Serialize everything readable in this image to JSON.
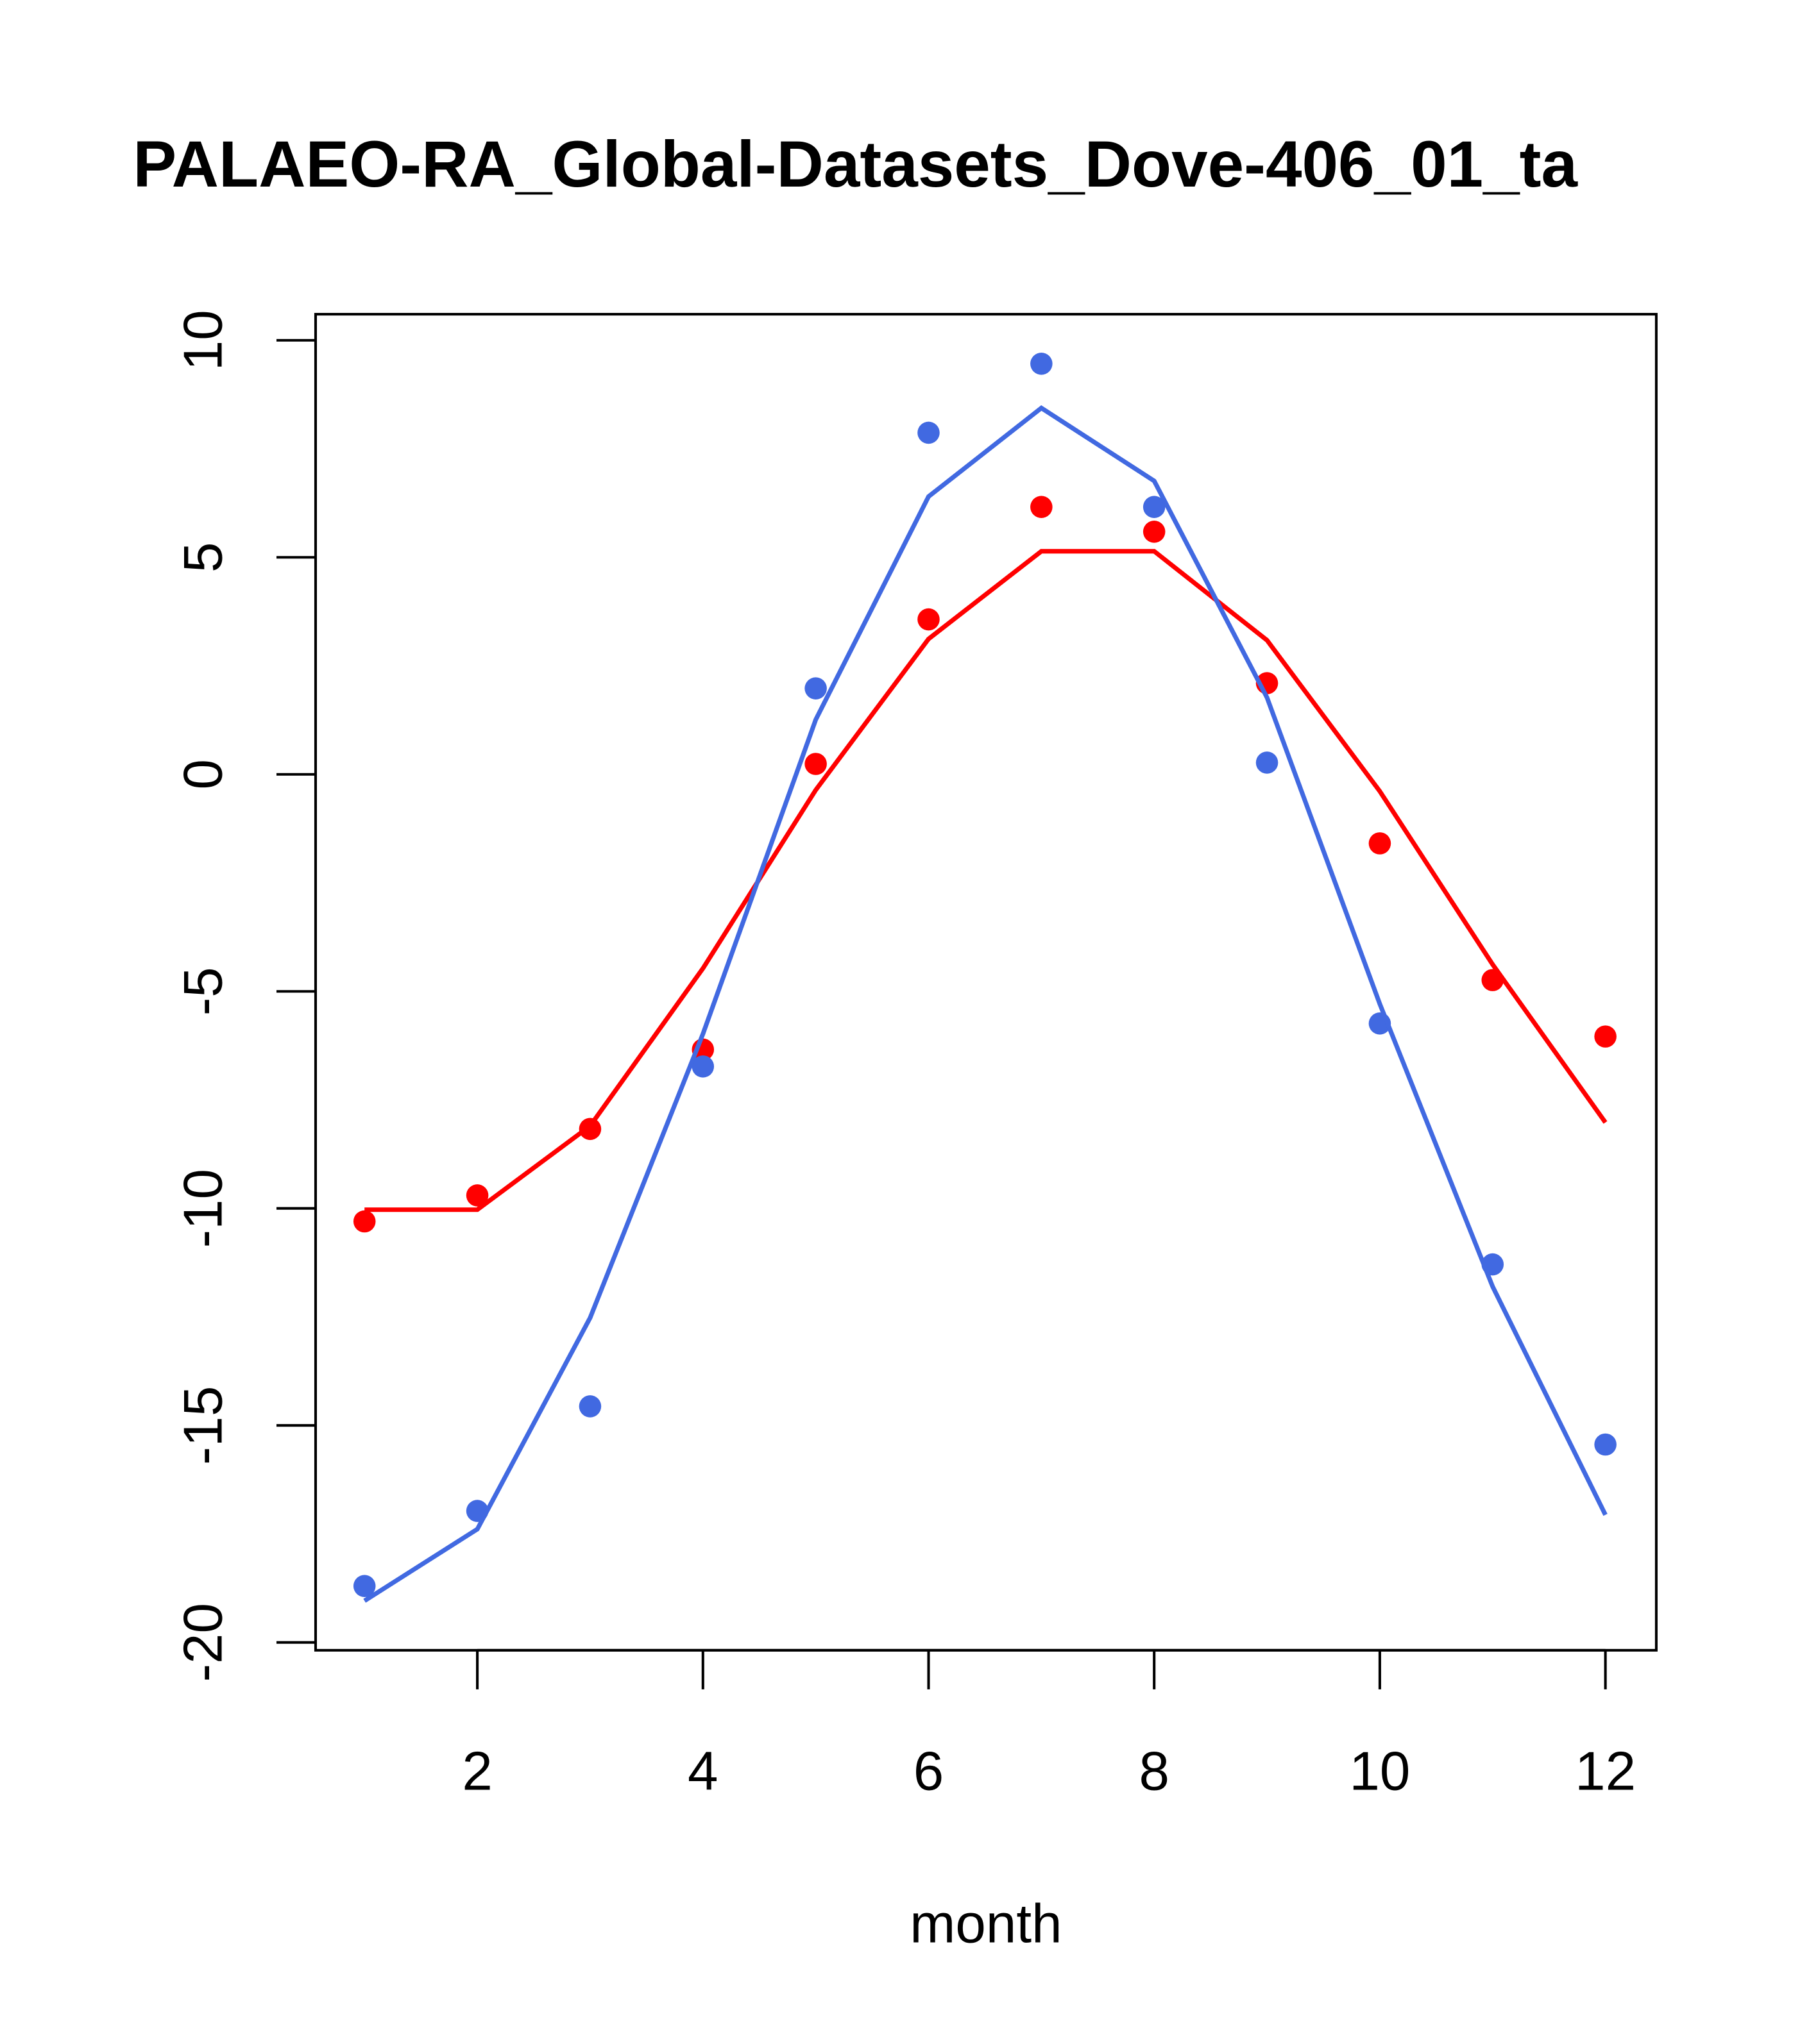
{
  "chart_data": {
    "type": "line",
    "title": "PALAEO-RA_Global-Datasets_Dove-406_01_ta",
    "xlabel": "month",
    "ylabel": "",
    "xlim": [
      0.55,
      12.45
    ],
    "ylim": [
      -20.2,
      10.6
    ],
    "xticks": [
      2,
      4,
      6,
      8,
      10,
      12
    ],
    "yticks": [
      -20,
      -15,
      -10,
      -5,
      0,
      5,
      10
    ],
    "x": [
      1,
      2,
      3,
      4,
      5,
      6,
      7,
      8,
      9,
      10,
      11,
      12
    ],
    "series": [
      {
        "name": "red points",
        "style": "points",
        "color": "#ff0000",
        "values": [
          -10.3,
          -9.7,
          -8.17,
          -6.34,
          0.24,
          3.57,
          6.16,
          5.59,
          2.1,
          -1.59,
          -4.74,
          -6.04
        ]
      },
      {
        "name": "red line",
        "style": "line",
        "color": "#ff0000",
        "values": [
          -10.03,
          -10.03,
          -8.1,
          -4.47,
          -0.36,
          3.12,
          5.14,
          5.14,
          3.09,
          -0.39,
          -4.38,
          -8.02
        ]
      },
      {
        "name": "blue points",
        "style": "points",
        "color": "#4169e1",
        "values": [
          -18.7,
          -16.97,
          -14.56,
          -6.73,
          1.98,
          7.87,
          9.46,
          6.16,
          0.27,
          -5.74,
          -11.29,
          -15.44
        ]
      },
      {
        "name": "blue line",
        "style": "line",
        "color": "#4169e1",
        "values": [
          -19.04,
          -17.39,
          -12.52,
          -5.98,
          1.26,
          6.4,
          8.44,
          6.76,
          1.77,
          -5.29,
          -11.8,
          -17.06
        ]
      }
    ]
  }
}
